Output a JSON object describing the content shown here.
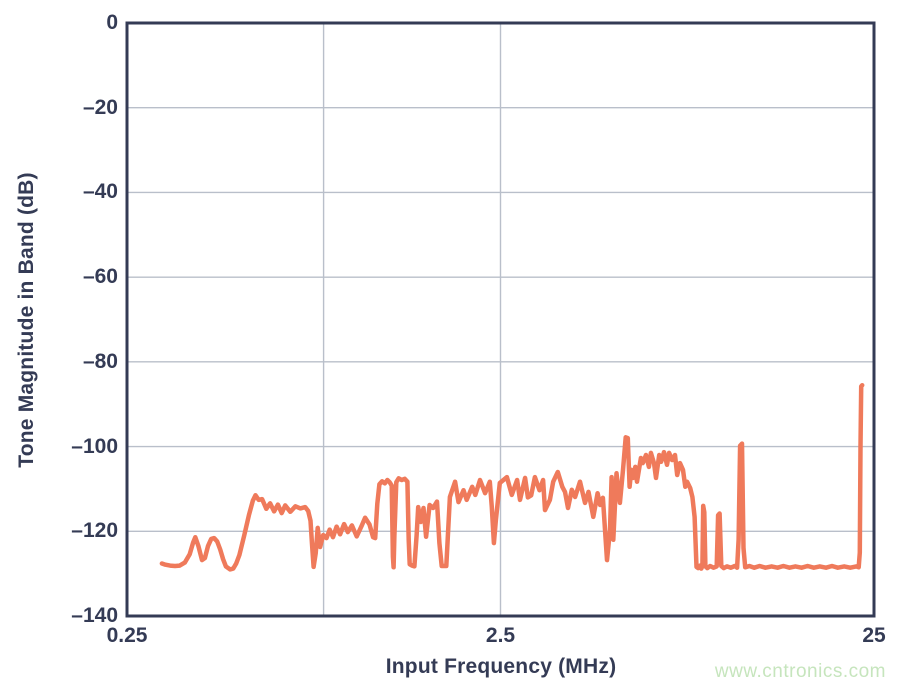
{
  "figure": {
    "watermark": "www.cntronics.com"
  },
  "chart_data": {
    "type": "line",
    "title": "",
    "xlabel": "Input Frequency (MHz)",
    "ylabel": "Tone Magnitude in Band (dB)",
    "x_scale": "log",
    "xlim": [
      0.25,
      25
    ],
    "ylim": [
      -140,
      0
    ],
    "grid": true,
    "legend": "none",
    "x_ticks": [
      {
        "value": 0.25,
        "label": "0.25"
      },
      {
        "value": 2.5,
        "label": "2.5"
      },
      {
        "value": 25,
        "label": "25"
      }
    ],
    "y_ticks": [
      {
        "value": 0,
        "label": "0"
      },
      {
        "value": -20,
        "label": "–20"
      },
      {
        "value": -40,
        "label": "–40"
      },
      {
        "value": -60,
        "label": "–60"
      },
      {
        "value": -80,
        "label": "–80"
      },
      {
        "value": -100,
        "label": "–100"
      },
      {
        "value": -120,
        "label": "–120"
      },
      {
        "value": -140,
        "label": "–140"
      }
    ],
    "x_gridlines": [
      0.84,
      2.5
    ],
    "y_gridlines": [
      -20,
      -40,
      -60,
      -80,
      -100,
      -120
    ],
    "colors": {
      "line": "#ef7a5b",
      "axis": "#343b55",
      "grid": "#b9bfca",
      "background": "#ffffff",
      "watermark": "#c6e5bd"
    },
    "series": [
      {
        "name": "tone-magnitude-in-band",
        "points": [
          [
            0.31,
            -127.6
          ],
          [
            0.317,
            -127.9
          ],
          [
            0.326,
            -128.1
          ],
          [
            0.336,
            -128.2
          ],
          [
            0.346,
            -128.1
          ],
          [
            0.357,
            -127.4
          ],
          [
            0.368,
            -125.4
          ],
          [
            0.376,
            -122.6
          ],
          [
            0.381,
            -121.4
          ],
          [
            0.388,
            -123.4
          ],
          [
            0.397,
            -126.8
          ],
          [
            0.404,
            -126.3
          ],
          [
            0.412,
            -123.5
          ],
          [
            0.42,
            -121.8
          ],
          [
            0.428,
            -121.6
          ],
          [
            0.436,
            -122.4
          ],
          [
            0.444,
            -124.3
          ],
          [
            0.452,
            -126.6
          ],
          [
            0.46,
            -128.3
          ],
          [
            0.472,
            -129.0
          ],
          [
            0.481,
            -128.8
          ],
          [
            0.49,
            -127.6
          ],
          [
            0.5,
            -125.6
          ],
          [
            0.515,
            -121.0
          ],
          [
            0.53,
            -116.2
          ],
          [
            0.543,
            -112.8
          ],
          [
            0.552,
            -111.5
          ],
          [
            0.563,
            -112.6
          ],
          [
            0.575,
            -112.4
          ],
          [
            0.59,
            -114.7
          ],
          [
            0.604,
            -113.4
          ],
          [
            0.619,
            -115.3
          ],
          [
            0.634,
            -113.7
          ],
          [
            0.649,
            -115.7
          ],
          [
            0.663,
            -113.9
          ],
          [
            0.684,
            -115.4
          ],
          [
            0.706,
            -114.1
          ],
          [
            0.728,
            -114.6
          ],
          [
            0.75,
            -114.3
          ],
          [
            0.764,
            -115.2
          ],
          [
            0.775,
            -117.5
          ],
          [
            0.782,
            -123.0
          ],
          [
            0.79,
            -128.4
          ],
          [
            0.8,
            -125.2
          ],
          [
            0.81,
            -119.2
          ],
          [
            0.822,
            -123.7
          ],
          [
            0.838,
            -120.9
          ],
          [
            0.855,
            -121.6
          ],
          [
            0.872,
            -119.6
          ],
          [
            0.89,
            -121.4
          ],
          [
            0.91,
            -118.9
          ],
          [
            0.93,
            -120.7
          ],
          [
            0.953,
            -118.3
          ],
          [
            0.975,
            -120.2
          ],
          [
            1.0,
            -118.6
          ],
          [
            1.03,
            -121.2
          ],
          [
            1.06,
            -118.9
          ],
          [
            1.085,
            -116.8
          ],
          [
            1.115,
            -118.4
          ],
          [
            1.14,
            -121.4
          ],
          [
            1.155,
            -121.6
          ],
          [
            1.17,
            -113.5
          ],
          [
            1.185,
            -108.9
          ],
          [
            1.205,
            -108.2
          ],
          [
            1.225,
            -108.7
          ],
          [
            1.245,
            -107.9
          ],
          [
            1.262,
            -108.4
          ],
          [
            1.278,
            -109.2
          ],
          [
            1.288,
            -126.0
          ],
          [
            1.293,
            -128.5
          ],
          [
            1.3,
            -121.0
          ],
          [
            1.315,
            -108.4
          ],
          [
            1.335,
            -107.5
          ],
          [
            1.36,
            -107.9
          ],
          [
            1.385,
            -107.6
          ],
          [
            1.408,
            -108.3
          ],
          [
            1.42,
            -122.0
          ],
          [
            1.428,
            -127.8
          ],
          [
            1.45,
            -128.1
          ],
          [
            1.47,
            -128.3
          ],
          [
            1.49,
            -121.0
          ],
          [
            1.505,
            -114.3
          ],
          [
            1.53,
            -117.8
          ],
          [
            1.555,
            -114.5
          ],
          [
            1.58,
            -121.3
          ],
          [
            1.615,
            -113.8
          ],
          [
            1.65,
            -114.5
          ],
          [
            1.69,
            -113.0
          ],
          [
            1.715,
            -122.8
          ],
          [
            1.74,
            -128.2
          ],
          [
            1.79,
            -128.2
          ],
          [
            1.83,
            -111.9
          ],
          [
            1.89,
            -108.3
          ],
          [
            1.93,
            -113.1
          ],
          [
            1.99,
            -110.3
          ],
          [
            2.03,
            -112.6
          ],
          [
            2.1,
            -109.5
          ],
          [
            2.14,
            -111.4
          ],
          [
            2.203,
            -107.9
          ],
          [
            2.273,
            -111.0
          ],
          [
            2.34,
            -108.3
          ],
          [
            2.37,
            -114.3
          ],
          [
            2.4,
            -122.8
          ],
          [
            2.43,
            -117.3
          ],
          [
            2.49,
            -108.6
          ],
          [
            2.6,
            -107.2
          ],
          [
            2.68,
            -111.4
          ],
          [
            2.77,
            -107.9
          ],
          [
            2.82,
            -112.6
          ],
          [
            2.91,
            -107.4
          ],
          [
            2.96,
            -112.0
          ],
          [
            3.02,
            -111.5
          ],
          [
            3.09,
            -107.2
          ],
          [
            3.18,
            -110.3
          ],
          [
            3.25,
            -107.9
          ],
          [
            3.29,
            -115.0
          ],
          [
            3.39,
            -112.6
          ],
          [
            3.46,
            -108.3
          ],
          [
            3.56,
            -106.0
          ],
          [
            3.66,
            -109.5
          ],
          [
            3.72,
            -110.7
          ],
          [
            3.79,
            -114.5
          ],
          [
            3.88,
            -110.2
          ],
          [
            3.96,
            -111.9
          ],
          [
            4.08,
            -108.3
          ],
          [
            4.21,
            -113.3
          ],
          [
            4.3,
            -110.7
          ],
          [
            4.43,
            -116.6
          ],
          [
            4.55,
            -111.0
          ],
          [
            4.62,
            -113.8
          ],
          [
            4.7,
            -112.1
          ],
          [
            4.82,
            -126.8
          ],
          [
            4.91,
            -119.7
          ],
          [
            4.96,
            -107.2
          ],
          [
            5.01,
            -122.0
          ],
          [
            5.11,
            -106.3
          ],
          [
            5.22,
            -113.3
          ],
          [
            5.32,
            -105.5
          ],
          [
            5.41,
            -97.8
          ],
          [
            5.48,
            -98.0
          ],
          [
            5.54,
            -109.5
          ],
          [
            5.6,
            -105.5
          ],
          [
            5.67,
            -107.4
          ],
          [
            5.74,
            -104.8
          ],
          [
            5.8,
            -108.3
          ],
          [
            5.94,
            -102.7
          ],
          [
            6.01,
            -103.9
          ],
          [
            6.13,
            -102.0
          ],
          [
            6.24,
            -104.8
          ],
          [
            6.32,
            -101.5
          ],
          [
            6.44,
            -103.9
          ],
          [
            6.52,
            -107.4
          ],
          [
            6.65,
            -102.0
          ],
          [
            6.73,
            -103.6
          ],
          [
            6.85,
            -101.3
          ],
          [
            6.98,
            -104.3
          ],
          [
            7.07,
            -101.5
          ],
          [
            7.2,
            -103.2
          ],
          [
            7.33,
            -102.0
          ],
          [
            7.43,
            -106.7
          ],
          [
            7.56,
            -103.9
          ],
          [
            7.7,
            -105.5
          ],
          [
            7.81,
            -109.5
          ],
          [
            7.9,
            -108.3
          ],
          [
            8.05,
            -109.8
          ],
          [
            8.16,
            -111.9
          ],
          [
            8.27,
            -116.6
          ],
          [
            8.37,
            -128.4
          ],
          [
            8.45,
            -128.7
          ],
          [
            8.55,
            -128.1
          ],
          [
            8.62,
            -128.8
          ],
          [
            8.68,
            -128.2
          ],
          [
            8.72,
            -114.0
          ],
          [
            8.78,
            -115.5
          ],
          [
            8.84,
            -128.3
          ],
          [
            8.95,
            -128.7
          ],
          [
            9.1,
            -128.2
          ],
          [
            9.3,
            -128.6
          ],
          [
            9.48,
            -128.3
          ],
          [
            9.56,
            -116.2
          ],
          [
            9.65,
            -115.8
          ],
          [
            9.75,
            -128.2
          ],
          [
            9.9,
            -128.7
          ],
          [
            10.1,
            -128.3
          ],
          [
            10.35,
            -128.6
          ],
          [
            10.6,
            -128.2
          ],
          [
            10.75,
            -128.6
          ],
          [
            10.85,
            -122.0
          ],
          [
            10.95,
            -99.8
          ],
          [
            11.08,
            -99.3
          ],
          [
            11.18,
            -124.0
          ],
          [
            11.3,
            -128.5
          ],
          [
            11.6,
            -128.2
          ],
          [
            11.95,
            -128.6
          ],
          [
            12.35,
            -128.2
          ],
          [
            12.8,
            -128.6
          ],
          [
            13.3,
            -128.3
          ],
          [
            13.8,
            -128.6
          ],
          [
            14.3,
            -128.2
          ],
          [
            14.85,
            -128.6
          ],
          [
            15.4,
            -128.3
          ],
          [
            16.0,
            -128.6
          ],
          [
            16.6,
            -128.2
          ],
          [
            17.25,
            -128.6
          ],
          [
            17.9,
            -128.3
          ],
          [
            18.6,
            -128.6
          ],
          [
            19.3,
            -128.2
          ],
          [
            20.0,
            -128.6
          ],
          [
            20.8,
            -128.3
          ],
          [
            21.6,
            -128.6
          ],
          [
            22.4,
            -128.3
          ],
          [
            22.75,
            -128.5
          ],
          [
            22.9,
            -125.0
          ],
          [
            23.0,
            -100.0
          ],
          [
            23.1,
            -85.8
          ],
          [
            23.25,
            -85.5
          ]
        ]
      }
    ]
  }
}
